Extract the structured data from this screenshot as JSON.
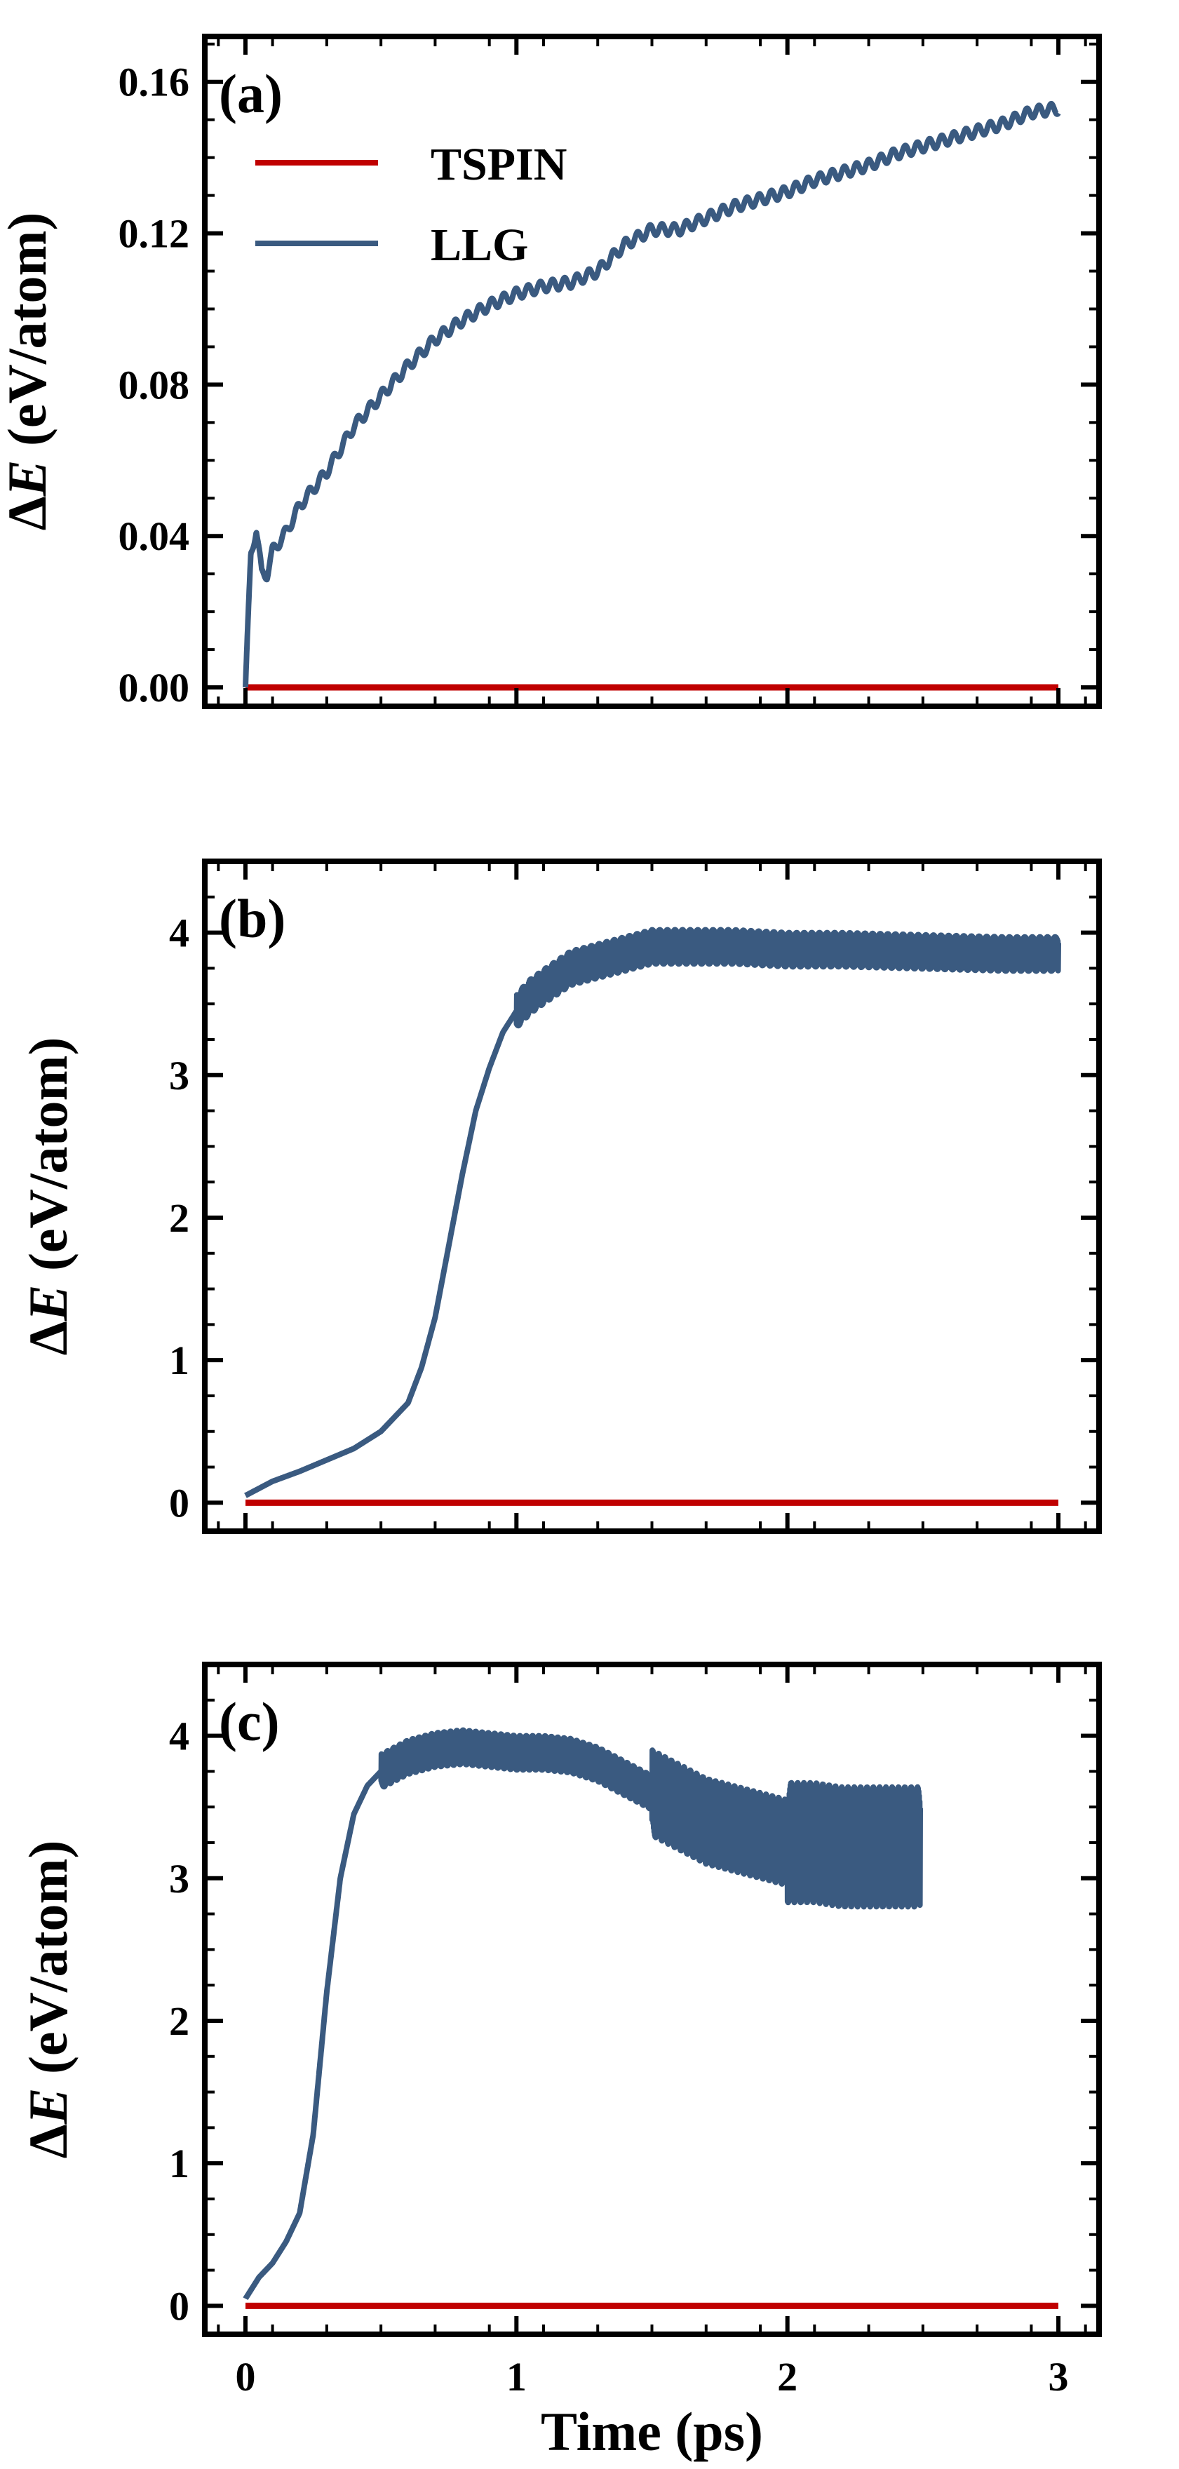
{
  "colors": {
    "tspin": "#c00000",
    "llg": "#3a5a80",
    "axis": "#000000"
  },
  "chart_data": [
    {
      "type": "line",
      "panel_label": "(a)",
      "ylabel_delta": "Δ",
      "ylabel_var": "E",
      "ylabel_rest": " (eV/atom)",
      "xlabel": "",
      "xlim": [
        -0.15,
        3.15
      ],
      "ylim": [
        -0.005,
        0.172
      ],
      "xticks": [
        0,
        1,
        2,
        3
      ],
      "yticks": [
        0.0,
        0.04,
        0.08,
        0.12,
        0.16
      ],
      "ytick_labels": [
        "0.00",
        "0.04",
        "0.08",
        "0.12",
        "0.16"
      ],
      "legend": {
        "position": "top-left",
        "entries": [
          "TSPIN",
          "LLG"
        ]
      },
      "series": [
        {
          "name": "TSPIN",
          "x": [
            0,
            3
          ],
          "values": [
            0.0,
            0.0
          ]
        },
        {
          "name": "LLG",
          "x": [
            0,
            0.02,
            0.04,
            0.06,
            0.08,
            0.1,
            0.15,
            0.2,
            0.3,
            0.4,
            0.5,
            0.6,
            0.7,
            0.8,
            0.9,
            1.0,
            1.1,
            1.2,
            1.3,
            1.4,
            1.5,
            1.6,
            1.7,
            1.8,
            1.9,
            2.0,
            2.1,
            2.2,
            2.3,
            2.4,
            2.5,
            2.6,
            2.7,
            2.8,
            2.9,
            3.0
          ],
          "values": [
            0.0,
            0.035,
            0.042,
            0.03,
            0.03,
            0.036,
            0.041,
            0.048,
            0.057,
            0.069,
            0.077,
            0.085,
            0.092,
            0.097,
            0.101,
            0.104,
            0.106,
            0.107,
            0.11,
            0.117,
            0.121,
            0.121,
            0.124,
            0.127,
            0.129,
            0.131,
            0.134,
            0.136,
            0.138,
            0.141,
            0.143,
            0.145,
            0.147,
            0.149,
            0.152,
            0.153
          ],
          "oscillation": 0.0015
        }
      ]
    },
    {
      "type": "line",
      "panel_label": "(b)",
      "ylabel_delta": "Δ",
      "ylabel_var": "E",
      "ylabel_rest": " (eV/atom)",
      "xlabel": "",
      "xlim": [
        -0.15,
        3.15
      ],
      "ylim": [
        -0.2,
        4.5
      ],
      "xticks": [
        0,
        1,
        2,
        3
      ],
      "yticks": [
        0,
        1,
        2,
        3,
        4
      ],
      "ytick_labels": [
        "0",
        "1",
        "2",
        "3",
        "4"
      ],
      "series": [
        {
          "name": "TSPIN",
          "x": [
            0,
            3
          ],
          "values": [
            0.0,
            0.0
          ]
        },
        {
          "name": "LLG",
          "x": [
            0,
            0.1,
            0.2,
            0.3,
            0.4,
            0.5,
            0.6,
            0.65,
            0.7,
            0.75,
            0.8,
            0.85,
            0.9,
            0.95,
            1.0,
            1.05,
            1.1,
            1.2,
            1.3,
            1.4,
            1.5,
            1.6,
            1.8,
            2.0,
            2.2,
            2.4,
            2.6,
            2.8,
            3.0
          ],
          "values": [
            0.05,
            0.15,
            0.22,
            0.3,
            0.38,
            0.5,
            0.7,
            0.95,
            1.3,
            1.8,
            2.3,
            2.75,
            3.05,
            3.3,
            3.45,
            3.55,
            3.62,
            3.75,
            3.8,
            3.85,
            3.9,
            3.9,
            3.9,
            3.88,
            3.88,
            3.87,
            3.86,
            3.85,
            3.85
          ],
          "noise": [
            {
              "from": 1.0,
              "to": 3.0,
              "amplitude": 0.12
            }
          ]
        }
      ]
    },
    {
      "type": "line",
      "panel_label": "(c)",
      "ylabel_delta": "Δ",
      "ylabel_var": "E",
      "ylabel_rest": " (eV/atom)",
      "xlabel": "Time (ps)",
      "xlim": [
        -0.15,
        3.15
      ],
      "ylim": [
        -0.2,
        4.5
      ],
      "xticks": [
        0,
        1,
        2,
        3
      ],
      "yticks": [
        0,
        1,
        2,
        3,
        4
      ],
      "ytick_labels": [
        "0",
        "1",
        "2",
        "3",
        "4"
      ],
      "series": [
        {
          "name": "TSPIN",
          "x": [
            0,
            3
          ],
          "values": [
            0.0,
            0.0
          ]
        },
        {
          "name": "LLG",
          "x": [
            0,
            0.05,
            0.1,
            0.15,
            0.2,
            0.25,
            0.3,
            0.35,
            0.4,
            0.45,
            0.5,
            0.6,
            0.7,
            0.8,
            0.9,
            1.0,
            1.1,
            1.2,
            1.3,
            1.4,
            1.5,
            1.6,
            1.7,
            1.8,
            1.9,
            2.0,
            2.1,
            2.2,
            2.3,
            2.4,
            2.49
          ],
          "values": [
            0.05,
            0.2,
            0.3,
            0.45,
            0.65,
            1.2,
            2.2,
            3.0,
            3.45,
            3.65,
            3.75,
            3.85,
            3.9,
            3.92,
            3.9,
            3.88,
            3.88,
            3.86,
            3.8,
            3.7,
            3.6,
            3.5,
            3.4,
            3.35,
            3.3,
            3.25,
            3.25,
            3.22,
            3.22,
            3.22,
            3.22
          ],
          "noise": [
            {
              "from": 0.5,
              "to": 1.5,
              "amplitude": 0.12
            },
            {
              "from": 1.5,
              "to": 2.0,
              "amplitude": 0.3
            },
            {
              "from": 2.0,
              "to": 2.49,
              "amplitude": 0.42
            }
          ]
        }
      ]
    }
  ]
}
